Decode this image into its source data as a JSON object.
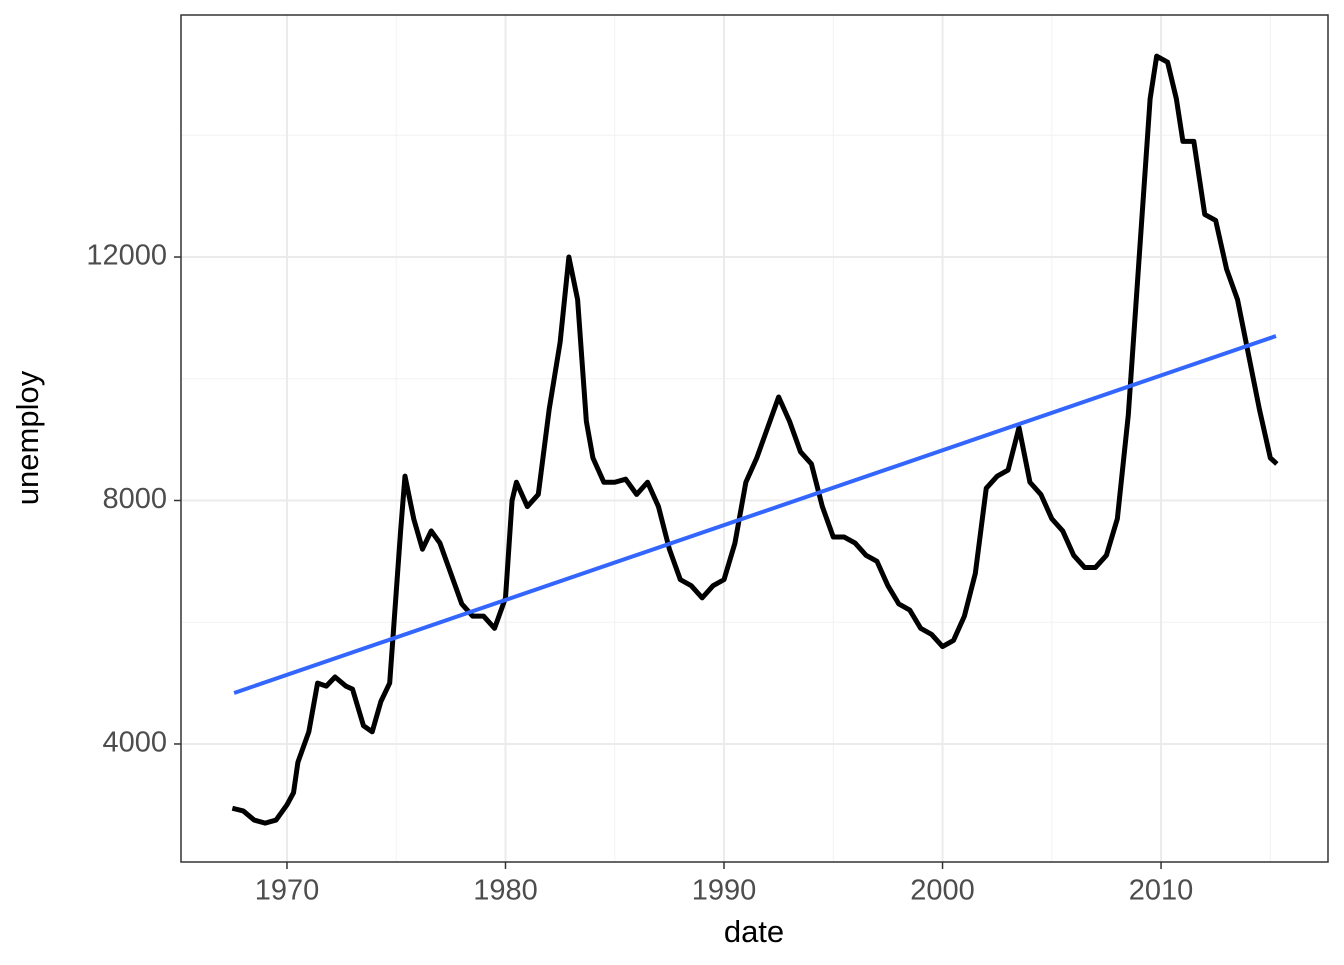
{
  "chart_data": {
    "type": "line",
    "xlabel": "date",
    "ylabel": "unemploy",
    "xlim": [
      1965.15,
      2017.64
    ],
    "ylim": [
      2061,
      15976
    ],
    "xticks": [
      1970,
      1980,
      1990,
      2000,
      2010
    ],
    "yticks": [
      4000,
      8000,
      12000
    ],
    "xminor": [
      1965,
      1975,
      1985,
      1995,
      2005,
      2015
    ],
    "yminor": [
      6000,
      10000,
      14000
    ],
    "grid": true,
    "series": [
      {
        "color": "#000000",
        "x": [
          1967.5,
          1968.0,
          1968.5,
          1969.0,
          1969.5,
          1970.0,
          1970.3,
          1970.5,
          1971.0,
          1971.4,
          1971.8,
          1972.2,
          1972.7,
          1973.0,
          1973.5,
          1973.9,
          1974.3,
          1974.7,
          1975.0,
          1975.2,
          1975.4,
          1975.8,
          1976.2,
          1976.6,
          1977.0,
          1977.5,
          1978.0,
          1978.5,
          1979.0,
          1979.5,
          1980.0,
          1980.3,
          1980.5,
          1981.0,
          1981.5,
          1982.0,
          1982.5,
          1982.9,
          1983.3,
          1983.7,
          1984.0,
          1984.5,
          1985.0,
          1985.5,
          1986.0,
          1986.5,
          1987.0,
          1987.5,
          1988.0,
          1988.5,
          1989.0,
          1989.5,
          1990.0,
          1990.5,
          1991.0,
          1991.5,
          1992.0,
          1992.5,
          1993.0,
          1993.5,
          1994.0,
          1994.5,
          1995.0,
          1995.5,
          1996.0,
          1996.5,
          1997.0,
          1997.5,
          1998.0,
          1998.5,
          1999.0,
          1999.5,
          2000.0,
          2000.5,
          2001.0,
          2001.5,
          2002.0,
          2002.5,
          2003.0,
          2003.5,
          2004.0,
          2004.5,
          2005.0,
          2005.5,
          2006.0,
          2006.5,
          2007.0,
          2007.5,
          2008.0,
          2008.5,
          2009.0,
          2009.5,
          2009.8,
          2010.3,
          2010.7,
          2011.0,
          2011.5,
          2012.0,
          2012.5,
          2013.0,
          2013.5,
          2014.0,
          2014.5,
          2015.0,
          2015.3
        ],
        "values": [
          2944,
          2900,
          2750,
          2700,
          2750,
          3000,
          3200,
          3700,
          4200,
          5000,
          4950,
          5100,
          4950,
          4900,
          4300,
          4200,
          4700,
          5000,
          6500,
          7500,
          8400,
          7700,
          7200,
          7500,
          7300,
          6800,
          6300,
          6100,
          6100,
          5900,
          6400,
          8000,
          8300,
          7900,
          8100,
          9500,
          10600,
          12000,
          11300,
          9300,
          8700,
          8300,
          8300,
          8350,
          8100,
          8300,
          7900,
          7200,
          6700,
          6600,
          6400,
          6600,
          6700,
          7300,
          8300,
          8700,
          9200,
          9700,
          9300,
          8800,
          8600,
          7900,
          7400,
          7400,
          7300,
          7100,
          7000,
          6600,
          6300,
          6200,
          5900,
          5800,
          5600,
          5700,
          6100,
          6800,
          8200,
          8400,
          8500,
          9200,
          8300,
          8100,
          7700,
          7500,
          7100,
          6900,
          6900,
          7100,
          7700,
          9400,
          12000,
          14600,
          15300,
          15200,
          14600,
          13900,
          13900,
          12700,
          12600,
          11800,
          11300,
          10400,
          9500,
          8700,
          8600
        ]
      },
      {
        "color": "#3366ff",
        "x": [
          1967.58,
          2015.26
        ],
        "values": [
          4838,
          10702
        ]
      }
    ]
  }
}
